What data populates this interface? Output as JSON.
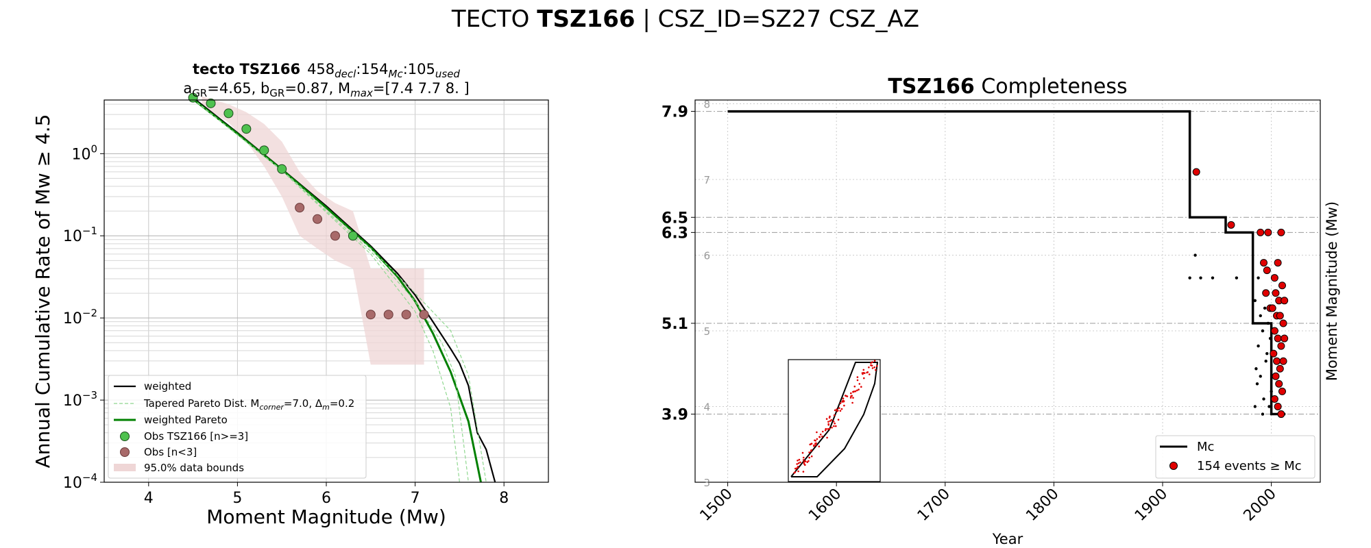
{
  "suptitle": {
    "prefix": "TECTO ",
    "bold": "TSZ166",
    "suffix": " | CSZ_ID=SZ27 CSZ_AZ"
  },
  "left_panel": {
    "title_bold": "tecto TSZ166",
    "title_counts": [
      "458",
      "decl",
      "154",
      "Mc",
      "105",
      "used"
    ],
    "subtitle": [
      "a",
      "GR",
      "=4.65,  b",
      "GR",
      "=0.87, M",
      "max",
      "=[7.4 7.7 8. ]"
    ],
    "xlabel": "Moment Magnitude (Mw)",
    "ylabel": "Annual Cumulative Rate of Mw ≥ 4.5",
    "x_ticks": [
      "4",
      "5",
      "6",
      "7",
      "8"
    ],
    "legend": [
      {
        "label": "weighted",
        "color": "#000000",
        "kind": "line"
      },
      {
        "label_parts": [
          "Tapered Pareto Dist. M",
          "corner",
          "=7.0, Δ",
          "m",
          "=0.2"
        ],
        "color": "#90d890",
        "kind": "dashed"
      },
      {
        "label": "weighted Pareto",
        "color": "#008000",
        "kind": "line"
      },
      {
        "label": "Obs TSZ166 [n>=3]",
        "color": "#3cb043",
        "kind": "marker"
      },
      {
        "label": "Obs [n<3]",
        "color": "#a05a5a",
        "kind": "marker"
      },
      {
        "label": "95.0% data bounds",
        "color": "#efd6d6",
        "kind": "patch"
      }
    ]
  },
  "right_panel": {
    "title_bold": "TSZ166",
    "title_rest": " Completeness",
    "xlabel": "Year",
    "ylabel": "Moment Magnitude (Mw)",
    "legend": [
      {
        "label": "Mc",
        "color": "#000000",
        "kind": "line"
      },
      {
        "label": "154 events ≥ Mc",
        "color": "#e00000",
        "kind": "marker"
      }
    ]
  },
  "chart_data": [
    {
      "type": "line",
      "title": "tecto TSZ166 458decl:154Mc:105used",
      "xlabel": "Moment Magnitude (Mw)",
      "ylabel": "Annual Cumulative Rate of Mw ≥ 4.5",
      "xlim": [
        3.5,
        8.5
      ],
      "ylim": [
        0.0001,
        4.5
      ],
      "yscale": "log",
      "grid": true,
      "legend_position": "lower-left",
      "series": [
        {
          "name": "weighted",
          "color": "#000000",
          "x": [
            4.5,
            5.0,
            5.5,
            6.0,
            6.5,
            6.8,
            7.0,
            7.2,
            7.4,
            7.5,
            7.6,
            7.7,
            7.8,
            7.9
          ],
          "y": [
            4.8,
            1.8,
            0.65,
            0.23,
            0.075,
            0.035,
            0.019,
            0.009,
            0.0042,
            0.0028,
            0.0015,
            0.0004,
            0.00025,
            0.0001
          ]
        },
        {
          "name": "weighted Pareto",
          "color": "#008000",
          "x": [
            4.5,
            5.0,
            5.5,
            6.0,
            6.5,
            6.8,
            7.0,
            7.2,
            7.4,
            7.6,
            7.74
          ],
          "y": [
            4.6,
            1.75,
            0.64,
            0.22,
            0.072,
            0.032,
            0.016,
            0.0065,
            0.0022,
            0.00055,
            0.0001
          ]
        },
        {
          "name": "Tapered Pareto Dist. Mcorner=7.0, Δm=0.2",
          "color": "#90d890",
          "dashed": true,
          "x": [
            4.5,
            5.5,
            6.5,
            7.0,
            7.2,
            7.4,
            7.5
          ],
          "y": [
            4.6,
            0.62,
            0.06,
            0.012,
            0.004,
            0.0008,
            0.0001
          ]
        },
        {
          "name": "Tapered Pareto Dist. Mcorner=7.0, Δm=0.2",
          "color": "#90d890",
          "dashed": true,
          "x": [
            4.5,
            5.5,
            6.5,
            7.0,
            7.3,
            7.45,
            7.6
          ],
          "y": [
            4.6,
            0.62,
            0.065,
            0.016,
            0.005,
            0.002,
            0.0001
          ]
        },
        {
          "name": "Tapered Pareto Dist. Mcorner=7.0, Δm=0.2",
          "color": "#90d890",
          "dashed": true,
          "x": [
            4.5,
            5.5,
            6.5,
            7.0,
            7.4,
            7.6,
            7.8
          ],
          "y": [
            4.6,
            0.63,
            0.07,
            0.02,
            0.007,
            0.002,
            0.0001
          ]
        }
      ],
      "observations": [
        {
          "x": 4.5,
          "y": 4.8,
          "n_ge_3": true
        },
        {
          "x": 4.7,
          "y": 4.1,
          "n_ge_3": true
        },
        {
          "x": 4.9,
          "y": 3.1,
          "n_ge_3": true
        },
        {
          "x": 5.1,
          "y": 2.0,
          "n_ge_3": true
        },
        {
          "x": 5.3,
          "y": 1.1,
          "n_ge_3": true
        },
        {
          "x": 5.5,
          "y": 0.65,
          "n_ge_3": true
        },
        {
          "x": 5.7,
          "y": 0.22,
          "n_ge_3": false
        },
        {
          "x": 5.9,
          "y": 0.16,
          "n_ge_3": false
        },
        {
          "x": 6.1,
          "y": 0.1,
          "n_ge_3": false
        },
        {
          "x": 6.3,
          "y": 0.1,
          "n_ge_3": true
        },
        {
          "x": 6.5,
          "y": 0.011,
          "n_ge_3": false
        },
        {
          "x": 6.7,
          "y": 0.011,
          "n_ge_3": false
        },
        {
          "x": 6.9,
          "y": 0.011,
          "n_ge_3": false
        },
        {
          "x": 7.1,
          "y": 0.011,
          "n_ge_3": false
        }
      ],
      "bounds_95": {
        "x": [
          4.6,
          4.9,
          5.1,
          5.3,
          5.5,
          5.7,
          5.9,
          6.1,
          6.3,
          6.5,
          6.7,
          6.9,
          7.1
        ],
        "low": [
          3.8,
          2.4,
          1.4,
          0.7,
          0.3,
          0.1,
          0.07,
          0.05,
          0.04,
          0.0027,
          0.0027,
          0.0027,
          0.0027
        ],
        "high": [
          5.0,
          4.0,
          3.2,
          2.3,
          1.4,
          0.6,
          0.35,
          0.25,
          0.2,
          0.04,
          0.04,
          0.04,
          0.04
        ]
      }
    },
    {
      "type": "scatter",
      "title": "TSZ166 Completeness",
      "xlabel": "Year",
      "ylabel": "Moment Magnitude (Mw)",
      "xlim": [
        1470,
        2045
      ],
      "ylim": [
        3.0,
        8.05
      ],
      "x_ticks": [
        1500,
        1600,
        1700,
        1800,
        1900,
        2000
      ],
      "y_ticks_minor": [
        3,
        4,
        5,
        6,
        7,
        8
      ],
      "mc_levels": [
        7.9,
        6.5,
        6.3,
        5.1,
        3.9
      ],
      "grid": true,
      "legend_position": "lower-right",
      "mc_step": {
        "x": [
          1500,
          1925,
          1925,
          1958,
          1958,
          1983,
          1983,
          2000,
          2000,
          2013
        ],
        "y": [
          7.9,
          7.9,
          6.5,
          6.5,
          6.3,
          6.3,
          5.1,
          5.1,
          3.9,
          3.9
        ]
      },
      "events_above_mc": [
        [
          1931,
          7.1
        ],
        [
          1963,
          6.4
        ],
        [
          1990,
          6.3
        ],
        [
          1997,
          6.3
        ],
        [
          2009,
          6.3
        ],
        [
          1993,
          5.9
        ],
        [
          2006,
          5.9
        ],
        [
          1996,
          5.8
        ],
        [
          2003,
          5.7
        ],
        [
          2010,
          5.6
        ],
        [
          1995,
          5.5
        ],
        [
          2004,
          5.5
        ],
        [
          2007,
          5.4
        ],
        [
          2012,
          5.4
        ],
        [
          1999,
          5.3
        ],
        [
          2001,
          5.3
        ],
        [
          2005,
          5.2
        ],
        [
          2008,
          5.2
        ],
        [
          2011,
          5.1
        ],
        [
          2003,
          5.0
        ],
        [
          2006,
          4.9
        ],
        [
          2009,
          4.8
        ],
        [
          2002,
          4.7
        ],
        [
          2005,
          4.6
        ],
        [
          2008,
          4.5
        ],
        [
          2004,
          4.4
        ],
        [
          2007,
          4.3
        ],
        [
          2010,
          4.2
        ],
        [
          2003,
          4.1
        ],
        [
          2006,
          4.0
        ],
        [
          2009,
          3.9
        ],
        [
          2011,
          4.6
        ],
        [
          2012,
          4.9
        ]
      ],
      "events_below_mc": [
        [
          1925,
          5.7
        ],
        [
          1935,
          5.7
        ],
        [
          1930,
          6.0
        ],
        [
          1946,
          5.7
        ],
        [
          1968,
          5.7
        ],
        [
          1988,
          5.7
        ],
        [
          1985,
          5.4
        ],
        [
          1990,
          5.2
        ],
        [
          1992,
          5.0
        ],
        [
          1988,
          4.8
        ],
        [
          1995,
          4.6
        ],
        [
          1990,
          4.4
        ],
        [
          1987,
          4.3
        ],
        [
          1993,
          4.1
        ],
        [
          1998,
          4.0
        ],
        [
          1985,
          4.0
        ],
        [
          1992,
          3.9
        ],
        [
          2000,
          4.2
        ],
        [
          1996,
          4.7
        ],
        [
          1999,
          4.9
        ],
        [
          1994,
          5.3
        ],
        [
          1997,
          5.1
        ],
        [
          1986,
          4.5
        ],
        [
          2002,
          4.4
        ]
      ],
      "inset": {
        "kind": "map",
        "description_shape": "zone polygon with epicenters"
      }
    }
  ]
}
